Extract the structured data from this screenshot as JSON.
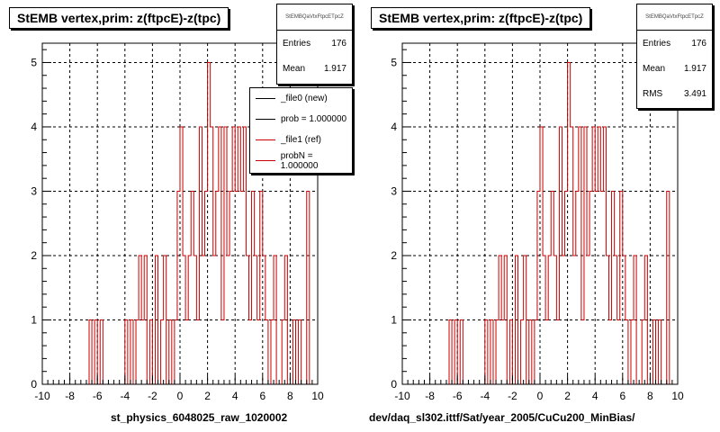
{
  "panels": [
    {
      "title": "StEMB  vertex,prim: z(ftpcE)-z(tpc)",
      "stats": {
        "name": "StEMBQaVtxFtpcETpcZ",
        "entries_label": "Entries",
        "entries": "176",
        "mean_label": "Mean",
        "mean": "1.917"
      },
      "legend": [
        {
          "label": "_file0 (new)",
          "color": "#000000"
        },
        {
          "label": "prob = 1.000000",
          "color": "#000000"
        },
        {
          "label": "_file1 (ref)",
          "color": "#cc0000"
        },
        {
          "label": "probN = 1.000000",
          "color": "#cc0000"
        }
      ],
      "bottom_label": "st_physics_6048025_raw_1020002"
    },
    {
      "title": "StEMB  vertex,prim: z(ftpcE)-z(tpc)",
      "stats": {
        "name": "StEMBQaVtxFtpcETpcZ",
        "entries_label": "Entries",
        "entries": "176",
        "mean_label": "Mean",
        "mean": "1.917",
        "rms_label": "RMS",
        "rms": "3.491"
      },
      "bottom_label": "dev/daq_sl302.ittf/Sat/year_2005/CuCu200_MinBias/"
    }
  ],
  "chart_data": [
    {
      "type": "bar",
      "histogram_style": "step",
      "series": [
        {
          "color": "#cc0000",
          "bin_width": 0.2,
          "bins": [
            {
              "x": -6.6,
              "y": 1
            },
            {
              "x": -6.2,
              "y": 1
            },
            {
              "x": -5.8,
              "y": 1
            },
            {
              "x": -4.0,
              "y": 1
            },
            {
              "x": -3.6,
              "y": 1
            },
            {
              "x": -3.2,
              "y": 1
            },
            {
              "x": -3.0,
              "y": 2
            },
            {
              "x": -2.8,
              "y": 1
            },
            {
              "x": -2.6,
              "y": 2
            },
            {
              "x": -2.2,
              "y": 1
            },
            {
              "x": -1.8,
              "y": 2
            },
            {
              "x": -1.4,
              "y": 1
            },
            {
              "x": -1.2,
              "y": 2
            },
            {
              "x": -0.8,
              "y": 1
            },
            {
              "x": -0.4,
              "y": 1
            },
            {
              "x": -0.2,
              "y": 3
            },
            {
              "x": 0.0,
              "y": 4
            },
            {
              "x": 0.2,
              "y": 2
            },
            {
              "x": 0.4,
              "y": 1
            },
            {
              "x": 0.6,
              "y": 2
            },
            {
              "x": 0.8,
              "y": 3
            },
            {
              "x": 1.0,
              "y": 2
            },
            {
              "x": 1.2,
              "y": 1
            },
            {
              "x": 1.4,
              "y": 4
            },
            {
              "x": 1.6,
              "y": 2
            },
            {
              "x": 1.8,
              "y": 3
            },
            {
              "x": 2.0,
              "y": 5
            },
            {
              "x": 2.2,
              "y": 4
            },
            {
              "x": 2.4,
              "y": 2
            },
            {
              "x": 2.6,
              "y": 3
            },
            {
              "x": 2.8,
              "y": 4
            },
            {
              "x": 3.0,
              "y": 1
            },
            {
              "x": 3.2,
              "y": 4
            },
            {
              "x": 3.4,
              "y": 2
            },
            {
              "x": 3.6,
              "y": 3
            },
            {
              "x": 3.8,
              "y": 4
            },
            {
              "x": 4.0,
              "y": 3
            },
            {
              "x": 4.2,
              "y": 4
            },
            {
              "x": 4.4,
              "y": 3
            },
            {
              "x": 4.6,
              "y": 4
            },
            {
              "x": 4.8,
              "y": 2
            },
            {
              "x": 5.0,
              "y": 1
            },
            {
              "x": 5.2,
              "y": 3
            },
            {
              "x": 5.4,
              "y": 2
            },
            {
              "x": 5.6,
              "y": 1
            },
            {
              "x": 5.8,
              "y": 3
            },
            {
              "x": 6.0,
              "y": 2
            },
            {
              "x": 6.2,
              "y": 1
            },
            {
              "x": 6.6,
              "y": 1
            },
            {
              "x": 6.8,
              "y": 2
            },
            {
              "x": 7.4,
              "y": 1
            },
            {
              "x": 7.6,
              "y": 2
            },
            {
              "x": 8.2,
              "y": 1
            },
            {
              "x": 8.6,
              "y": 1
            },
            {
              "x": 9.2,
              "y": 3
            }
          ]
        }
      ],
      "xlim": [
        -10,
        10
      ],
      "ylim": [
        0,
        5.3
      ],
      "xticks": [
        -10,
        -8,
        -6,
        -4,
        -2,
        0,
        2,
        4,
        6,
        8,
        10
      ],
      "yticks": [
        0,
        1,
        2,
        3,
        4,
        5
      ],
      "grid": true
    },
    {
      "type": "bar",
      "histogram_style": "step",
      "series": [
        {
          "color": "#cc0000",
          "bin_width": 0.2,
          "bins": [
            {
              "x": -6.6,
              "y": 1
            },
            {
              "x": -6.2,
              "y": 1
            },
            {
              "x": -5.8,
              "y": 1
            },
            {
              "x": -4.0,
              "y": 1
            },
            {
              "x": -3.6,
              "y": 1
            },
            {
              "x": -3.2,
              "y": 1
            },
            {
              "x": -3.0,
              "y": 2
            },
            {
              "x": -2.8,
              "y": 1
            },
            {
              "x": -2.6,
              "y": 2
            },
            {
              "x": -2.2,
              "y": 1
            },
            {
              "x": -1.8,
              "y": 2
            },
            {
              "x": -1.4,
              "y": 1
            },
            {
              "x": -1.2,
              "y": 2
            },
            {
              "x": -0.8,
              "y": 1
            },
            {
              "x": -0.4,
              "y": 1
            },
            {
              "x": -0.2,
              "y": 3
            },
            {
              "x": 0.0,
              "y": 4
            },
            {
              "x": 0.2,
              "y": 2
            },
            {
              "x": 0.4,
              "y": 1
            },
            {
              "x": 0.6,
              "y": 2
            },
            {
              "x": 0.8,
              "y": 3
            },
            {
              "x": 1.0,
              "y": 2
            },
            {
              "x": 1.2,
              "y": 1
            },
            {
              "x": 1.4,
              "y": 4
            },
            {
              "x": 1.6,
              "y": 2
            },
            {
              "x": 1.8,
              "y": 3
            },
            {
              "x": 2.0,
              "y": 5
            },
            {
              "x": 2.2,
              "y": 4
            },
            {
              "x": 2.4,
              "y": 2
            },
            {
              "x": 2.6,
              "y": 3
            },
            {
              "x": 2.8,
              "y": 4
            },
            {
              "x": 3.0,
              "y": 1
            },
            {
              "x": 3.2,
              "y": 4
            },
            {
              "x": 3.4,
              "y": 2
            },
            {
              "x": 3.6,
              "y": 3
            },
            {
              "x": 3.8,
              "y": 4
            },
            {
              "x": 4.0,
              "y": 3
            },
            {
              "x": 4.2,
              "y": 4
            },
            {
              "x": 4.4,
              "y": 3
            },
            {
              "x": 4.6,
              "y": 4
            },
            {
              "x": 4.8,
              "y": 2
            },
            {
              "x": 5.0,
              "y": 1
            },
            {
              "x": 5.2,
              "y": 3
            },
            {
              "x": 5.4,
              "y": 2
            },
            {
              "x": 5.6,
              "y": 1
            },
            {
              "x": 5.8,
              "y": 3
            },
            {
              "x": 6.0,
              "y": 2
            },
            {
              "x": 6.2,
              "y": 1
            },
            {
              "x": 6.6,
              "y": 1
            },
            {
              "x": 6.8,
              "y": 2
            },
            {
              "x": 7.4,
              "y": 1
            },
            {
              "x": 7.6,
              "y": 2
            },
            {
              "x": 8.2,
              "y": 1
            },
            {
              "x": 8.6,
              "y": 1
            },
            {
              "x": 9.2,
              "y": 3
            }
          ]
        }
      ],
      "xlim": [
        -10,
        10
      ],
      "ylim": [
        0,
        5.3
      ],
      "xticks": [
        -10,
        -8,
        -6,
        -4,
        -2,
        0,
        2,
        4,
        6,
        8,
        10
      ],
      "yticks": [
        0,
        1,
        2,
        3,
        4,
        5
      ],
      "grid": true
    }
  ]
}
